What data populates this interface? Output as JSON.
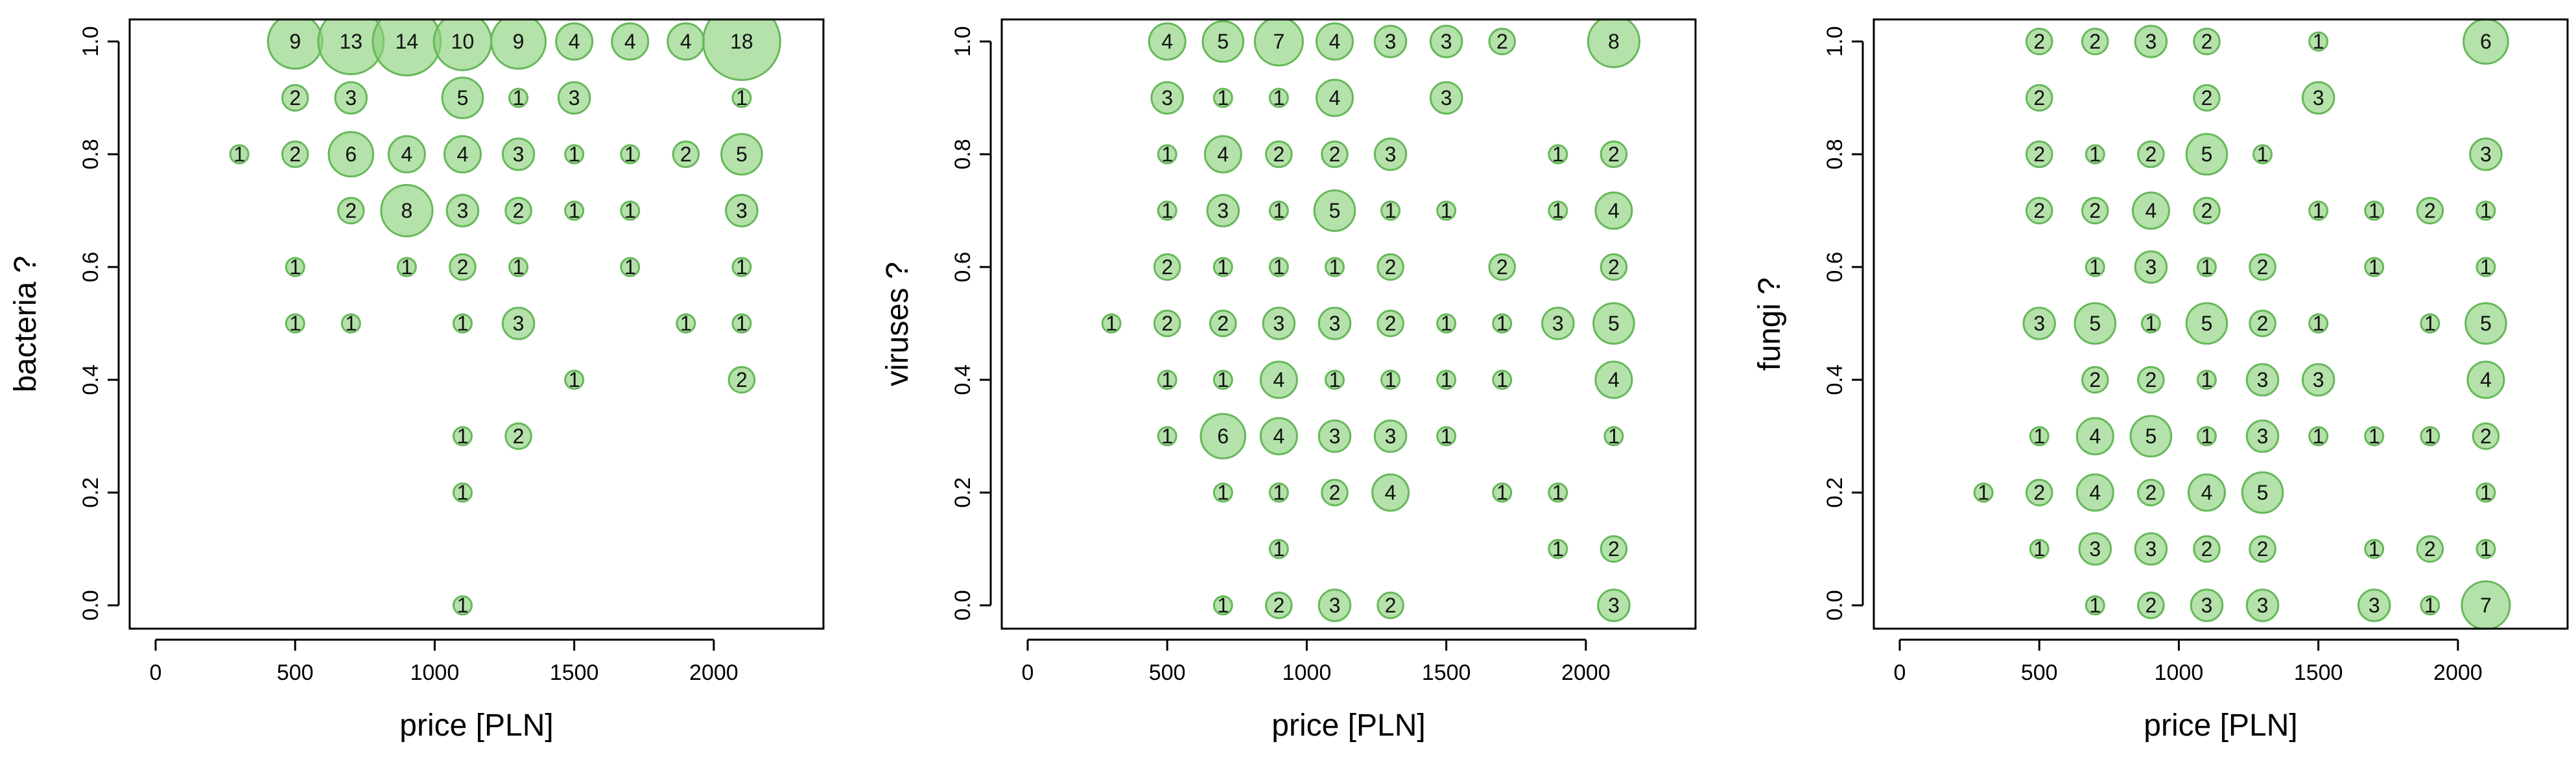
{
  "bubble_color": "#8ed17c",
  "bubble_stroke": "#66b85a",
  "chart_data": [
    {
      "type": "scatter",
      "title": "",
      "xlabel": "price [PLN]",
      "ylabel": "bacteria ?",
      "xlim": [
        0,
        2300
      ],
      "ylim": [
        0,
        1
      ],
      "xticks": [
        "0",
        "500",
        "1000",
        "1500",
        "2000"
      ],
      "yticks": [
        "0.0",
        "0.2",
        "0.4",
        "0.6",
        "0.8",
        "1.0"
      ],
      "points": [
        {
          "x": 500,
          "y": 1.0,
          "n": 9
        },
        {
          "x": 700,
          "y": 1.0,
          "n": 13
        },
        {
          "x": 900,
          "y": 1.0,
          "n": 14
        },
        {
          "x": 1100,
          "y": 1.0,
          "n": 10
        },
        {
          "x": 1300,
          "y": 1.0,
          "n": 9
        },
        {
          "x": 1500,
          "y": 1.0,
          "n": 4
        },
        {
          "x": 1700,
          "y": 1.0,
          "n": 4
        },
        {
          "x": 1900,
          "y": 1.0,
          "n": 4
        },
        {
          "x": 2100,
          "y": 1.0,
          "n": 18
        },
        {
          "x": 500,
          "y": 0.9,
          "n": 2
        },
        {
          "x": 700,
          "y": 0.9,
          "n": 3
        },
        {
          "x": 1100,
          "y": 0.9,
          "n": 5
        },
        {
          "x": 1300,
          "y": 0.9,
          "n": 1
        },
        {
          "x": 1500,
          "y": 0.9,
          "n": 3
        },
        {
          "x": 2100,
          "y": 0.9,
          "n": 1
        },
        {
          "x": 300,
          "y": 0.8,
          "n": 1
        },
        {
          "x": 500,
          "y": 0.8,
          "n": 2
        },
        {
          "x": 700,
          "y": 0.8,
          "n": 6
        },
        {
          "x": 900,
          "y": 0.8,
          "n": 4
        },
        {
          "x": 1100,
          "y": 0.8,
          "n": 4
        },
        {
          "x": 1300,
          "y": 0.8,
          "n": 3
        },
        {
          "x": 1500,
          "y": 0.8,
          "n": 1
        },
        {
          "x": 1700,
          "y": 0.8,
          "n": 1
        },
        {
          "x": 1900,
          "y": 0.8,
          "n": 2
        },
        {
          "x": 2100,
          "y": 0.8,
          "n": 5
        },
        {
          "x": 700,
          "y": 0.7,
          "n": 2
        },
        {
          "x": 900,
          "y": 0.7,
          "n": 8
        },
        {
          "x": 1100,
          "y": 0.7,
          "n": 3
        },
        {
          "x": 1300,
          "y": 0.7,
          "n": 2
        },
        {
          "x": 1500,
          "y": 0.7,
          "n": 1
        },
        {
          "x": 1700,
          "y": 0.7,
          "n": 1
        },
        {
          "x": 2100,
          "y": 0.7,
          "n": 3
        },
        {
          "x": 500,
          "y": 0.6,
          "n": 1
        },
        {
          "x": 900,
          "y": 0.6,
          "n": 1
        },
        {
          "x": 1100,
          "y": 0.6,
          "n": 2
        },
        {
          "x": 1300,
          "y": 0.6,
          "n": 1
        },
        {
          "x": 1700,
          "y": 0.6,
          "n": 1
        },
        {
          "x": 2100,
          "y": 0.6,
          "n": 1
        },
        {
          "x": 500,
          "y": 0.5,
          "n": 1
        },
        {
          "x": 700,
          "y": 0.5,
          "n": 1
        },
        {
          "x": 1100,
          "y": 0.5,
          "n": 1
        },
        {
          "x": 1300,
          "y": 0.5,
          "n": 3
        },
        {
          "x": 1900,
          "y": 0.5,
          "n": 1
        },
        {
          "x": 2100,
          "y": 0.5,
          "n": 1
        },
        {
          "x": 1500,
          "y": 0.4,
          "n": 1
        },
        {
          "x": 2100,
          "y": 0.4,
          "n": 2
        },
        {
          "x": 1100,
          "y": 0.3,
          "n": 1
        },
        {
          "x": 1300,
          "y": 0.3,
          "n": 2
        },
        {
          "x": 1100,
          "y": 0.2,
          "n": 1
        },
        {
          "x": 1100,
          "y": 0.0,
          "n": 1
        }
      ]
    },
    {
      "type": "scatter",
      "title": "",
      "xlabel": "price [PLN]",
      "ylabel": "viruses ?",
      "xlim": [
        0,
        2300
      ],
      "ylim": [
        0,
        1
      ],
      "xticks": [
        "0",
        "500",
        "1000",
        "1500",
        "2000"
      ],
      "yticks": [
        "0.0",
        "0.2",
        "0.4",
        "0.6",
        "0.8",
        "1.0"
      ],
      "points": [
        {
          "x": 500,
          "y": 1.0,
          "n": 4
        },
        {
          "x": 700,
          "y": 1.0,
          "n": 5
        },
        {
          "x": 900,
          "y": 1.0,
          "n": 7
        },
        {
          "x": 1100,
          "y": 1.0,
          "n": 4
        },
        {
          "x": 1300,
          "y": 1.0,
          "n": 3
        },
        {
          "x": 1500,
          "y": 1.0,
          "n": 3
        },
        {
          "x": 1700,
          "y": 1.0,
          "n": 2
        },
        {
          "x": 2100,
          "y": 1.0,
          "n": 8
        },
        {
          "x": 500,
          "y": 0.9,
          "n": 3
        },
        {
          "x": 700,
          "y": 0.9,
          "n": 1
        },
        {
          "x": 900,
          "y": 0.9,
          "n": 1
        },
        {
          "x": 1100,
          "y": 0.9,
          "n": 4
        },
        {
          "x": 1500,
          "y": 0.9,
          "n": 3
        },
        {
          "x": 500,
          "y": 0.8,
          "n": 1
        },
        {
          "x": 700,
          "y": 0.8,
          "n": 4
        },
        {
          "x": 900,
          "y": 0.8,
          "n": 2
        },
        {
          "x": 1100,
          "y": 0.8,
          "n": 2
        },
        {
          "x": 1300,
          "y": 0.8,
          "n": 3
        },
        {
          "x": 1900,
          "y": 0.8,
          "n": 1
        },
        {
          "x": 2100,
          "y": 0.8,
          "n": 2
        },
        {
          "x": 500,
          "y": 0.7,
          "n": 1
        },
        {
          "x": 700,
          "y": 0.7,
          "n": 3
        },
        {
          "x": 900,
          "y": 0.7,
          "n": 1
        },
        {
          "x": 1100,
          "y": 0.7,
          "n": 5
        },
        {
          "x": 1300,
          "y": 0.7,
          "n": 1
        },
        {
          "x": 1500,
          "y": 0.7,
          "n": 1
        },
        {
          "x": 1900,
          "y": 0.7,
          "n": 1
        },
        {
          "x": 2100,
          "y": 0.7,
          "n": 4
        },
        {
          "x": 500,
          "y": 0.6,
          "n": 2
        },
        {
          "x": 700,
          "y": 0.6,
          "n": 1
        },
        {
          "x": 900,
          "y": 0.6,
          "n": 1
        },
        {
          "x": 1100,
          "y": 0.6,
          "n": 1
        },
        {
          "x": 1300,
          "y": 0.6,
          "n": 2
        },
        {
          "x": 1700,
          "y": 0.6,
          "n": 2
        },
        {
          "x": 2100,
          "y": 0.6,
          "n": 2
        },
        {
          "x": 300,
          "y": 0.5,
          "n": 1
        },
        {
          "x": 500,
          "y": 0.5,
          "n": 2
        },
        {
          "x": 700,
          "y": 0.5,
          "n": 2
        },
        {
          "x": 900,
          "y": 0.5,
          "n": 3
        },
        {
          "x": 1100,
          "y": 0.5,
          "n": 3
        },
        {
          "x": 1300,
          "y": 0.5,
          "n": 2
        },
        {
          "x": 1500,
          "y": 0.5,
          "n": 1
        },
        {
          "x": 1700,
          "y": 0.5,
          "n": 1
        },
        {
          "x": 1900,
          "y": 0.5,
          "n": 3
        },
        {
          "x": 2100,
          "y": 0.5,
          "n": 5
        },
        {
          "x": 500,
          "y": 0.4,
          "n": 1
        },
        {
          "x": 700,
          "y": 0.4,
          "n": 1
        },
        {
          "x": 900,
          "y": 0.4,
          "n": 4
        },
        {
          "x": 1100,
          "y": 0.4,
          "n": 1
        },
        {
          "x": 1300,
          "y": 0.4,
          "n": 1
        },
        {
          "x": 1500,
          "y": 0.4,
          "n": 1
        },
        {
          "x": 1700,
          "y": 0.4,
          "n": 1
        },
        {
          "x": 2100,
          "y": 0.4,
          "n": 4
        },
        {
          "x": 500,
          "y": 0.3,
          "n": 1
        },
        {
          "x": 700,
          "y": 0.3,
          "n": 6
        },
        {
          "x": 900,
          "y": 0.3,
          "n": 4
        },
        {
          "x": 1100,
          "y": 0.3,
          "n": 3
        },
        {
          "x": 1300,
          "y": 0.3,
          "n": 3
        },
        {
          "x": 1500,
          "y": 0.3,
          "n": 1
        },
        {
          "x": 2100,
          "y": 0.3,
          "n": 1
        },
        {
          "x": 700,
          "y": 0.2,
          "n": 1
        },
        {
          "x": 900,
          "y": 0.2,
          "n": 1
        },
        {
          "x": 1100,
          "y": 0.2,
          "n": 2
        },
        {
          "x": 1300,
          "y": 0.2,
          "n": 4
        },
        {
          "x": 1700,
          "y": 0.2,
          "n": 1
        },
        {
          "x": 1900,
          "y": 0.2,
          "n": 1
        },
        {
          "x": 900,
          "y": 0.1,
          "n": 1
        },
        {
          "x": 1900,
          "y": 0.1,
          "n": 1
        },
        {
          "x": 2100,
          "y": 0.1,
          "n": 2
        },
        {
          "x": 700,
          "y": 0.0,
          "n": 1
        },
        {
          "x": 900,
          "y": 0.0,
          "n": 2
        },
        {
          "x": 1100,
          "y": 0.0,
          "n": 3
        },
        {
          "x": 1300,
          "y": 0.0,
          "n": 2
        },
        {
          "x": 2100,
          "y": 0.0,
          "n": 3
        }
      ]
    },
    {
      "type": "scatter",
      "title": "",
      "xlabel": "price [PLN]",
      "ylabel": "fungi ?",
      "xlim": [
        0,
        2300
      ],
      "ylim": [
        0,
        1
      ],
      "xticks": [
        "0",
        "500",
        "1000",
        "1500",
        "2000"
      ],
      "yticks": [
        "0.0",
        "0.2",
        "0.4",
        "0.6",
        "0.8",
        "1.0"
      ],
      "points": [
        {
          "x": 500,
          "y": 1.0,
          "n": 2
        },
        {
          "x": 700,
          "y": 1.0,
          "n": 2
        },
        {
          "x": 900,
          "y": 1.0,
          "n": 3
        },
        {
          "x": 1100,
          "y": 1.0,
          "n": 2
        },
        {
          "x": 1500,
          "y": 1.0,
          "n": 1
        },
        {
          "x": 2100,
          "y": 1.0,
          "n": 6
        },
        {
          "x": 500,
          "y": 0.9,
          "n": 2
        },
        {
          "x": 1100,
          "y": 0.9,
          "n": 2
        },
        {
          "x": 1500,
          "y": 0.9,
          "n": 3
        },
        {
          "x": 500,
          "y": 0.8,
          "n": 2
        },
        {
          "x": 700,
          "y": 0.8,
          "n": 1
        },
        {
          "x": 900,
          "y": 0.8,
          "n": 2
        },
        {
          "x": 1100,
          "y": 0.8,
          "n": 5
        },
        {
          "x": 1300,
          "y": 0.8,
          "n": 1
        },
        {
          "x": 2100,
          "y": 0.8,
          "n": 3
        },
        {
          "x": 500,
          "y": 0.7,
          "n": 2
        },
        {
          "x": 700,
          "y": 0.7,
          "n": 2
        },
        {
          "x": 900,
          "y": 0.7,
          "n": 4
        },
        {
          "x": 1100,
          "y": 0.7,
          "n": 2
        },
        {
          "x": 1500,
          "y": 0.7,
          "n": 1
        },
        {
          "x": 1700,
          "y": 0.7,
          "n": 1
        },
        {
          "x": 1900,
          "y": 0.7,
          "n": 2
        },
        {
          "x": 2100,
          "y": 0.7,
          "n": 1
        },
        {
          "x": 700,
          "y": 0.6,
          "n": 1
        },
        {
          "x": 900,
          "y": 0.6,
          "n": 3
        },
        {
          "x": 1100,
          "y": 0.6,
          "n": 1
        },
        {
          "x": 1300,
          "y": 0.6,
          "n": 2
        },
        {
          "x": 1700,
          "y": 0.6,
          "n": 1
        },
        {
          "x": 2100,
          "y": 0.6,
          "n": 1
        },
        {
          "x": 500,
          "y": 0.5,
          "n": 3
        },
        {
          "x": 700,
          "y": 0.5,
          "n": 5
        },
        {
          "x": 900,
          "y": 0.5,
          "n": 1
        },
        {
          "x": 1100,
          "y": 0.5,
          "n": 5
        },
        {
          "x": 1300,
          "y": 0.5,
          "n": 2
        },
        {
          "x": 1500,
          "y": 0.5,
          "n": 1
        },
        {
          "x": 1900,
          "y": 0.5,
          "n": 1
        },
        {
          "x": 2100,
          "y": 0.5,
          "n": 5
        },
        {
          "x": 700,
          "y": 0.4,
          "n": 2
        },
        {
          "x": 900,
          "y": 0.4,
          "n": 2
        },
        {
          "x": 1100,
          "y": 0.4,
          "n": 1
        },
        {
          "x": 1300,
          "y": 0.4,
          "n": 3
        },
        {
          "x": 1500,
          "y": 0.4,
          "n": 3
        },
        {
          "x": 2100,
          "y": 0.4,
          "n": 4
        },
        {
          "x": 500,
          "y": 0.3,
          "n": 1
        },
        {
          "x": 700,
          "y": 0.3,
          "n": 4
        },
        {
          "x": 900,
          "y": 0.3,
          "n": 5
        },
        {
          "x": 1100,
          "y": 0.3,
          "n": 1
        },
        {
          "x": 1300,
          "y": 0.3,
          "n": 3
        },
        {
          "x": 1500,
          "y": 0.3,
          "n": 1
        },
        {
          "x": 1700,
          "y": 0.3,
          "n": 1
        },
        {
          "x": 1900,
          "y": 0.3,
          "n": 1
        },
        {
          "x": 2100,
          "y": 0.3,
          "n": 2
        },
        {
          "x": 300,
          "y": 0.2,
          "n": 1
        },
        {
          "x": 500,
          "y": 0.2,
          "n": 2
        },
        {
          "x": 700,
          "y": 0.2,
          "n": 4
        },
        {
          "x": 900,
          "y": 0.2,
          "n": 2
        },
        {
          "x": 1100,
          "y": 0.2,
          "n": 4
        },
        {
          "x": 1300,
          "y": 0.2,
          "n": 5
        },
        {
          "x": 2100,
          "y": 0.2,
          "n": 1
        },
        {
          "x": 500,
          "y": 0.1,
          "n": 1
        },
        {
          "x": 700,
          "y": 0.1,
          "n": 3
        },
        {
          "x": 900,
          "y": 0.1,
          "n": 3
        },
        {
          "x": 1100,
          "y": 0.1,
          "n": 2
        },
        {
          "x": 1300,
          "y": 0.1,
          "n": 2
        },
        {
          "x": 1700,
          "y": 0.1,
          "n": 1
        },
        {
          "x": 1900,
          "y": 0.1,
          "n": 2
        },
        {
          "x": 2100,
          "y": 0.1,
          "n": 1
        },
        {
          "x": 700,
          "y": 0.0,
          "n": 1
        },
        {
          "x": 900,
          "y": 0.0,
          "n": 2
        },
        {
          "x": 1100,
          "y": 0.0,
          "n": 3
        },
        {
          "x": 1300,
          "y": 0.0,
          "n": 3
        },
        {
          "x": 1700,
          "y": 0.0,
          "n": 3
        },
        {
          "x": 1900,
          "y": 0.0,
          "n": 1
        },
        {
          "x": 2100,
          "y": 0.0,
          "n": 7
        }
      ]
    }
  ]
}
